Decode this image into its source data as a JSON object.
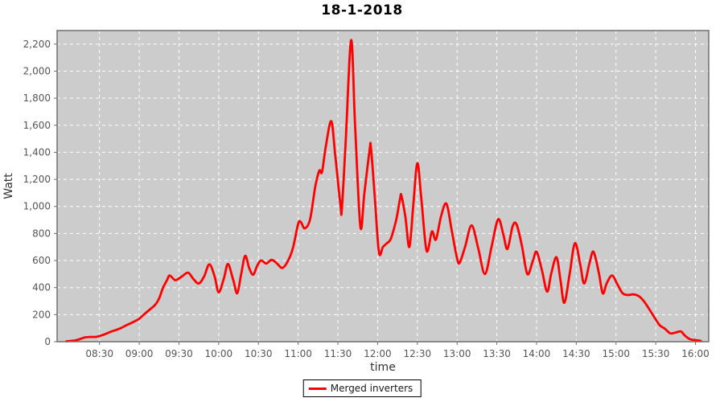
{
  "title": "18-1-2018",
  "legend": {
    "label": "Merged inverters"
  },
  "colors": {
    "page_bg": "#ffffff",
    "plot_bg": "#cccccc",
    "grid": "#ffffff",
    "plot_border": "#6e6e6e",
    "tick_mark": "#6e6e6e",
    "tick_text": "#555555",
    "axis_label_text": "#333333",
    "title_text": "#000000",
    "series": "#ff0000",
    "legend_border": "#000000",
    "legend_bg": "#ffffff"
  },
  "chart_data": {
    "type": "line",
    "title": "18-1-2018",
    "xlabel": "time",
    "ylabel": "Watt",
    "xlim_minutes": [
      "07:58",
      "16:10"
    ],
    "ylim": [
      0,
      2300
    ],
    "grid": "white dashed on gray background",
    "legend_position": "bottom-center",
    "x_ticks": [
      "08:30",
      "09:00",
      "09:30",
      "10:00",
      "10:30",
      "11:00",
      "11:30",
      "12:00",
      "12:30",
      "13:00",
      "13:30",
      "14:00",
      "14:30",
      "15:00",
      "15:30",
      "16:00"
    ],
    "y_ticks": [
      0,
      200,
      400,
      600,
      800,
      1000,
      1200,
      1400,
      1600,
      1800,
      2000,
      2200
    ],
    "y_tick_labels": [
      "0",
      "200",
      "400",
      "600",
      "800",
      "1,000",
      "1,200",
      "1,400",
      "1,600",
      "1,800",
      "2,000",
      "2,200"
    ],
    "series": [
      {
        "name": "Merged inverters",
        "color": "#ff0000",
        "points": [
          [
            "08:05",
            3
          ],
          [
            "08:08",
            6
          ],
          [
            "08:12",
            10
          ],
          [
            "08:16",
            22
          ],
          [
            "08:19",
            32
          ],
          [
            "08:23",
            35
          ],
          [
            "08:27",
            35
          ],
          [
            "08:30",
            42
          ],
          [
            "08:34",
            55
          ],
          [
            "08:38",
            72
          ],
          [
            "08:42",
            85
          ],
          [
            "08:46",
            100
          ],
          [
            "08:50",
            120
          ],
          [
            "08:54",
            138
          ],
          [
            "08:58",
            158
          ],
          [
            "09:00",
            170
          ],
          [
            "09:04",
            205
          ],
          [
            "09:08",
            238
          ],
          [
            "09:12",
            272
          ],
          [
            "09:15",
            320
          ],
          [
            "09:18",
            400
          ],
          [
            "09:21",
            455
          ],
          [
            "09:23",
            490
          ],
          [
            "09:27",
            455
          ],
          [
            "09:30",
            468
          ],
          [
            "09:33",
            488
          ],
          [
            "09:37",
            510
          ],
          [
            "09:41",
            462
          ],
          [
            "09:45",
            430
          ],
          [
            "09:49",
            482
          ],
          [
            "09:53",
            572
          ],
          [
            "09:57",
            480
          ],
          [
            "10:00",
            365
          ],
          [
            "10:04",
            470
          ],
          [
            "10:07",
            575
          ],
          [
            "10:11",
            455
          ],
          [
            "10:14",
            358
          ],
          [
            "10:17",
            500
          ],
          [
            "10:20",
            635
          ],
          [
            "10:23",
            545
          ],
          [
            "10:26",
            495
          ],
          [
            "10:29",
            560
          ],
          [
            "10:32",
            600
          ],
          [
            "10:36",
            578
          ],
          [
            "10:40",
            605
          ],
          [
            "10:44",
            578
          ],
          [
            "10:48",
            545
          ],
          [
            "10:52",
            592
          ],
          [
            "10:56",
            690
          ],
          [
            "11:00",
            870
          ],
          [
            "11:02",
            885
          ],
          [
            "11:05",
            838
          ],
          [
            "11:09",
            905
          ],
          [
            "11:13",
            1150
          ],
          [
            "11:16",
            1265
          ],
          [
            "11:18",
            1255
          ],
          [
            "11:21",
            1450
          ],
          [
            "11:25",
            1630
          ],
          [
            "11:28",
            1380
          ],
          [
            "11:32",
            1005
          ],
          [
            "11:33",
            985
          ],
          [
            "11:36",
            1500
          ],
          [
            "11:40",
            2230
          ],
          [
            "11:43",
            1600
          ],
          [
            "11:47",
            850
          ],
          [
            "11:50",
            1100
          ],
          [
            "11:54",
            1420
          ],
          [
            "11:55",
            1430
          ],
          [
            "11:58",
            1050
          ],
          [
            "12:01",
            660
          ],
          [
            "12:04",
            700
          ],
          [
            "12:07",
            728
          ],
          [
            "12:10",
            762
          ],
          [
            "12:14",
            900
          ],
          [
            "12:17",
            1060
          ],
          [
            "12:18",
            1080
          ],
          [
            "12:21",
            920
          ],
          [
            "12:24",
            700
          ],
          [
            "12:27",
            1020
          ],
          [
            "12:30",
            1320
          ],
          [
            "12:33",
            1060
          ],
          [
            "12:37",
            672
          ],
          [
            "12:41",
            815
          ],
          [
            "12:44",
            755
          ],
          [
            "12:48",
            930
          ],
          [
            "12:52",
            1020
          ],
          [
            "12:56",
            820
          ],
          [
            "13:00",
            615
          ],
          [
            "13:02",
            585
          ],
          [
            "13:06",
            700
          ],
          [
            "13:11",
            860
          ],
          [
            "13:16",
            690
          ],
          [
            "13:21",
            500
          ],
          [
            "13:26",
            700
          ],
          [
            "13:31",
            905
          ],
          [
            "13:35",
            790
          ],
          [
            "13:38",
            685
          ],
          [
            "13:42",
            855
          ],
          [
            "13:45",
            865
          ],
          [
            "13:49",
            705
          ],
          [
            "13:53",
            500
          ],
          [
            "13:57",
            590
          ],
          [
            "14:00",
            665
          ],
          [
            "14:04",
            530
          ],
          [
            "14:08",
            370
          ],
          [
            "14:11",
            500
          ],
          [
            "14:15",
            625
          ],
          [
            "14:18",
            460
          ],
          [
            "14:21",
            287
          ],
          [
            "14:25",
            500
          ],
          [
            "14:29",
            728
          ],
          [
            "14:33",
            570
          ],
          [
            "14:36",
            430
          ],
          [
            "14:40",
            580
          ],
          [
            "14:43",
            665
          ],
          [
            "14:47",
            510
          ],
          [
            "14:50",
            357
          ],
          [
            "14:53",
            432
          ],
          [
            "14:57",
            490
          ],
          [
            "15:01",
            425
          ],
          [
            "15:05",
            358
          ],
          [
            "15:09",
            345
          ],
          [
            "15:13",
            350
          ],
          [
            "15:17",
            338
          ],
          [
            "15:21",
            300
          ],
          [
            "15:25",
            242
          ],
          [
            "15:29",
            180
          ],
          [
            "15:33",
            122
          ],
          [
            "15:37",
            95
          ],
          [
            "15:41",
            62
          ],
          [
            "15:45",
            68
          ],
          [
            "15:49",
            76
          ],
          [
            "15:52",
            45
          ],
          [
            "15:56",
            18
          ],
          [
            "16:00",
            12
          ],
          [
            "16:04",
            6
          ]
        ]
      }
    ]
  }
}
